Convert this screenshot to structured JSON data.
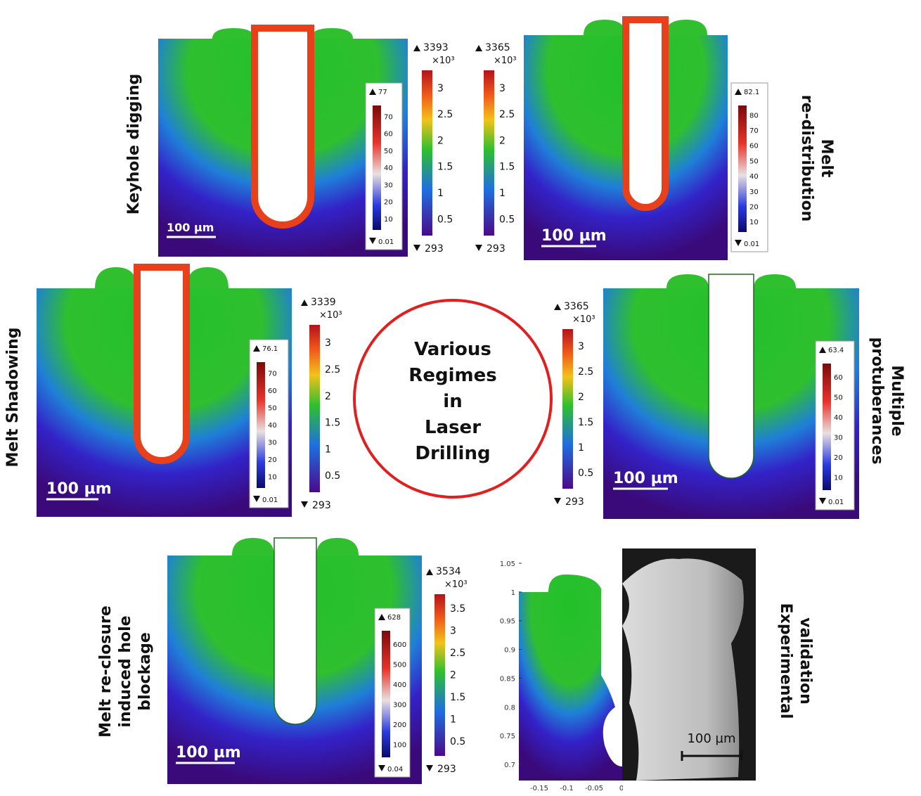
{
  "center_title_lines": [
    "Various",
    "Regimes",
    "in",
    "Laser",
    "Drilling"
  ],
  "panels": [
    {
      "label_lines": [
        "Keyhole digging"
      ],
      "scale_bar": "100 µm",
      "temperature_bar": {
        "max": 3393,
        "exponent_label": "×10³",
        "ticks": [
          3,
          2.5,
          2,
          1.5,
          1,
          0.5
        ],
        "min": 293
      },
      "velocity_bar": {
        "max": 77,
        "ticks": [
          70,
          60,
          50,
          40,
          30,
          20,
          10
        ],
        "min": 0.01
      }
    },
    {
      "label_lines": [
        "Melt",
        "re-distribution"
      ],
      "scale_bar": "100 µm",
      "temperature_bar": {
        "max": 3365,
        "exponent_label": "×10³",
        "ticks": [
          3,
          2.5,
          2,
          1.5,
          1,
          0.5
        ],
        "min": 293
      },
      "velocity_bar": {
        "max": 82.1,
        "ticks": [
          80,
          70,
          60,
          50,
          40,
          30,
          20,
          10
        ],
        "min": 0.01
      }
    },
    {
      "label_lines": [
        "Melt Shadowing"
      ],
      "scale_bar": "100 µm",
      "temperature_bar": {
        "max": 3339,
        "exponent_label": "×10³",
        "ticks": [
          3,
          2.5,
          2,
          1.5,
          1,
          0.5
        ],
        "min": 293
      },
      "velocity_bar": {
        "max": 76.1,
        "ticks": [
          70,
          60,
          50,
          40,
          30,
          20,
          10
        ],
        "min": 0.01
      }
    },
    {
      "label_lines": [
        "Multiple",
        "protuberances"
      ],
      "scale_bar": "100 µm",
      "temperature_bar": {
        "max": 3365,
        "exponent_label": "×10³",
        "ticks": [
          3,
          2.5,
          2,
          1.5,
          1,
          0.5
        ],
        "min": 293
      },
      "velocity_bar": {
        "max": 63.4,
        "ticks": [
          60,
          50,
          40,
          30,
          20,
          10
        ],
        "min": 0.01
      }
    },
    {
      "label_lines": [
        "Melt re-closure",
        "induced hole",
        "blockage"
      ],
      "scale_bar": "100 µm",
      "temperature_bar": {
        "max": 3534,
        "exponent_label": "×10³",
        "ticks": [
          3.5,
          3,
          2.5,
          2,
          1.5,
          1,
          0.5
        ],
        "min": 293
      },
      "velocity_bar": {
        "max": 628,
        "ticks": [
          600,
          500,
          400,
          300,
          200,
          100
        ],
        "min": 0.04
      }
    }
  ],
  "experimental": {
    "label_lines": [
      "Experimental",
      "validation"
    ],
    "y_ticks": [
      1.05,
      1,
      0.95,
      0.9,
      0.85,
      0.8,
      0.75,
      0.7
    ],
    "x_ticks": [
      -0.15,
      -0.1,
      -0.05,
      0
    ],
    "scale_bar": "100 µm"
  }
}
